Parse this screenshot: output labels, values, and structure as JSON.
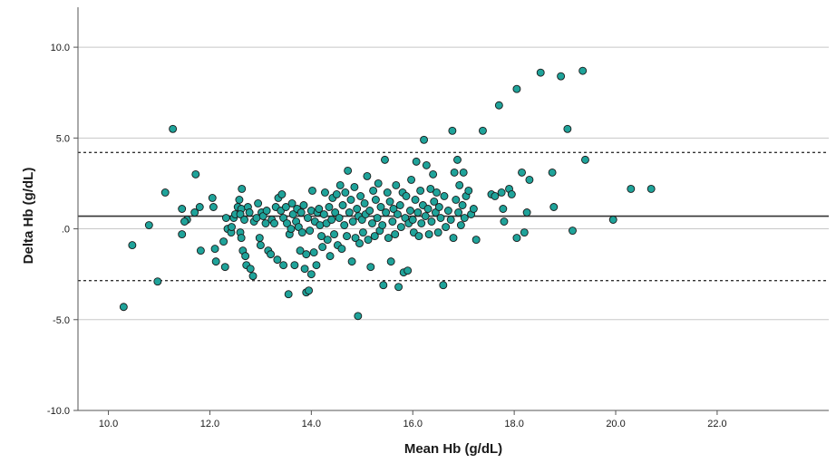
{
  "chart_data": {
    "type": "scatter",
    "xlabel": "Mean Hb (g/dL)",
    "ylabel": "Delta Hb (g/dL)",
    "xlim": [
      9.4,
      24.2
    ],
    "ylim": [
      -10.0,
      12.2
    ],
    "x_ticks": [
      "10.0",
      "12.0",
      "14.0",
      "16.0",
      "18.0",
      "20.0",
      "22.0"
    ],
    "x_tick_values": [
      10,
      12,
      14,
      16,
      18,
      20,
      22
    ],
    "y_ticks": [
      "10.0",
      "5.0",
      ".0",
      "-5.0",
      "-10.0"
    ],
    "y_tick_values": [
      10,
      5,
      0,
      -5,
      -10
    ],
    "grid": "horizontal",
    "reference_lines": [
      {
        "value": 0.7,
        "style": "solid"
      },
      {
        "value": 4.2,
        "style": "dotted"
      },
      {
        "value": -2.85,
        "style": "dotted"
      }
    ],
    "marker_color": "#1fa39a",
    "marker_edge_color": "#1a1a1a",
    "points": [
      [
        10.3,
        -4.3
      ],
      [
        10.47,
        -0.9
      ],
      [
        10.8,
        0.2
      ],
      [
        10.97,
        -2.9
      ],
      [
        11.12,
        2.0
      ],
      [
        11.27,
        5.5
      ],
      [
        11.45,
        1.1
      ],
      [
        11.45,
        -0.3
      ],
      [
        11.55,
        0.5
      ],
      [
        11.5,
        0.4
      ],
      [
        11.7,
        0.9
      ],
      [
        11.72,
        3.0
      ],
      [
        11.8,
        1.2
      ],
      [
        11.82,
        -1.2
      ],
      [
        12.05,
        1.7
      ],
      [
        12.07,
        1.2
      ],
      [
        12.1,
        -1.1
      ],
      [
        12.12,
        -1.8
      ],
      [
        12.27,
        -0.7
      ],
      [
        12.3,
        -2.1
      ],
      [
        12.32,
        0.6
      ],
      [
        12.35,
        0.0
      ],
      [
        12.42,
        -0.2
      ],
      [
        12.43,
        0.1
      ],
      [
        12.47,
        0.6
      ],
      [
        12.5,
        0.8
      ],
      [
        12.55,
        1.2
      ],
      [
        12.58,
        1.6
      ],
      [
        12.62,
        1.1
      ],
      [
        12.6,
        0.8
      ],
      [
        12.6,
        -0.2
      ],
      [
        12.62,
        -0.5
      ],
      [
        12.65,
        -1.2
      ],
      [
        12.63,
        2.2
      ],
      [
        12.68,
        0.5
      ],
      [
        12.7,
        -1.5
      ],
      [
        12.72,
        -2.0
      ],
      [
        12.75,
        1.2
      ],
      [
        12.78,
        0.9
      ],
      [
        12.8,
        -2.2
      ],
      [
        12.85,
        -2.6
      ],
      [
        12.87,
        0.4
      ],
      [
        12.92,
        0.6
      ],
      [
        12.95,
        1.4
      ],
      [
        12.98,
        -0.5
      ],
      [
        13.0,
        -0.9
      ],
      [
        13.02,
        0.9
      ],
      [
        13.05,
        0.7
      ],
      [
        13.1,
        0.3
      ],
      [
        13.12,
        1.0
      ],
      [
        13.15,
        -1.2
      ],
      [
        13.2,
        -1.4
      ],
      [
        13.22,
        0.5
      ],
      [
        13.27,
        0.3
      ],
      [
        13.3,
        1.2
      ],
      [
        13.33,
        -1.7
      ],
      [
        13.35,
        1.7
      ],
      [
        13.4,
        1.0
      ],
      [
        13.42,
        1.9
      ],
      [
        13.45,
        0.6
      ],
      [
        13.45,
        -2.0
      ],
      [
        13.5,
        1.2
      ],
      [
        13.52,
        0.3
      ],
      [
        13.55,
        -3.6
      ],
      [
        13.57,
        -0.3
      ],
      [
        13.6,
        0.0
      ],
      [
        13.62,
        1.4
      ],
      [
        13.64,
        0.8
      ],
      [
        13.67,
        -2.0
      ],
      [
        13.7,
        0.4
      ],
      [
        13.72,
        1.1
      ],
      [
        13.75,
        0.1
      ],
      [
        13.78,
        -1.2
      ],
      [
        13.8,
        0.9
      ],
      [
        13.82,
        -0.2
      ],
      [
        13.85,
        1.3
      ],
      [
        13.87,
        -2.2
      ],
      [
        13.9,
        -1.4
      ],
      [
        13.9,
        -3.5
      ],
      [
        13.93,
        0.6
      ],
      [
        13.95,
        -3.4
      ],
      [
        13.97,
        -0.1
      ],
      [
        14.0,
        1.0
      ],
      [
        14.0,
        -2.5
      ],
      [
        14.02,
        2.1
      ],
      [
        14.05,
        -1.3
      ],
      [
        14.07,
        0.4
      ],
      [
        14.1,
        -2.0
      ],
      [
        14.12,
        0.9
      ],
      [
        14.15,
        1.1
      ],
      [
        14.17,
        0.2
      ],
      [
        14.2,
        -0.4
      ],
      [
        14.22,
        -1.0
      ],
      [
        14.25,
        0.8
      ],
      [
        14.27,
        2.0
      ],
      [
        14.3,
        0.3
      ],
      [
        14.32,
        -0.6
      ],
      [
        14.35,
        1.2
      ],
      [
        14.37,
        -1.5
      ],
      [
        14.4,
        0.5
      ],
      [
        14.42,
        1.7
      ],
      [
        14.45,
        -0.3
      ],
      [
        14.47,
        0.9
      ],
      [
        14.5,
        1.9
      ],
      [
        14.52,
        -0.9
      ],
      [
        14.55,
        0.6
      ],
      [
        14.57,
        2.4
      ],
      [
        14.6,
        -1.1
      ],
      [
        14.62,
        1.3
      ],
      [
        14.65,
        0.2
      ],
      [
        14.67,
        2.0
      ],
      [
        14.7,
        -0.4
      ],
      [
        14.72,
        3.2
      ],
      [
        14.75,
        0.9
      ],
      [
        14.78,
        1.6
      ],
      [
        14.8,
        -1.8
      ],
      [
        14.82,
        0.4
      ],
      [
        14.85,
        2.3
      ],
      [
        14.87,
        -0.5
      ],
      [
        14.9,
        1.1
      ],
      [
        14.92,
        -4.8
      ],
      [
        14.93,
        0.7
      ],
      [
        14.95,
        -0.8
      ],
      [
        14.97,
        1.8
      ],
      [
        15.0,
        0.5
      ],
      [
        15.02,
        -0.2
      ],
      [
        15.05,
        1.4
      ],
      [
        15.07,
        0.8
      ],
      [
        15.1,
        2.9
      ],
      [
        15.12,
        -0.6
      ],
      [
        15.15,
        1.0
      ],
      [
        15.17,
        -2.1
      ],
      [
        15.2,
        0.3
      ],
      [
        15.22,
        2.1
      ],
      [
        15.25,
        -0.4
      ],
      [
        15.27,
        1.6
      ],
      [
        15.3,
        0.6
      ],
      [
        15.32,
        2.5
      ],
      [
        15.35,
        -0.1
      ],
      [
        15.37,
        1.2
      ],
      [
        15.4,
        0.2
      ],
      [
        15.42,
        -3.1
      ],
      [
        15.45,
        3.8
      ],
      [
        15.47,
        0.9
      ],
      [
        15.5,
        2.0
      ],
      [
        15.52,
        -0.5
      ],
      [
        15.55,
        1.5
      ],
      [
        15.57,
        -1.8
      ],
      [
        15.6,
        0.4
      ],
      [
        15.62,
        1.1
      ],
      [
        15.65,
        -0.3
      ],
      [
        15.67,
        2.4
      ],
      [
        15.7,
        0.8
      ],
      [
        15.72,
        -3.2
      ],
      [
        15.75,
        1.3
      ],
      [
        15.77,
        0.1
      ],
      [
        15.8,
        2.0
      ],
      [
        15.82,
        -2.4
      ],
      [
        15.85,
        0.6
      ],
      [
        15.87,
        1.8
      ],
      [
        15.9,
        -2.3
      ],
      [
        15.92,
        0.3
      ],
      [
        15.95,
        1.0
      ],
      [
        15.97,
        2.7
      ],
      [
        16.0,
        0.5
      ],
      [
        16.02,
        -0.2
      ],
      [
        16.05,
        1.6
      ],
      [
        16.07,
        3.7
      ],
      [
        16.1,
        0.9
      ],
      [
        16.12,
        -0.4
      ],
      [
        16.15,
        2.1
      ],
      [
        16.17,
        0.3
      ],
      [
        16.2,
        1.3
      ],
      [
        16.22,
        4.9
      ],
      [
        16.25,
        0.7
      ],
      [
        16.27,
        3.5
      ],
      [
        16.3,
        1.1
      ],
      [
        16.32,
        -0.3
      ],
      [
        16.35,
        2.2
      ],
      [
        16.37,
        0.4
      ],
      [
        16.4,
        3.0
      ],
      [
        16.42,
        1.5
      ],
      [
        16.45,
        0.9
      ],
      [
        16.47,
        2.0
      ],
      [
        16.5,
        -0.2
      ],
      [
        16.52,
        1.2
      ],
      [
        16.55,
        0.6
      ],
      [
        16.6,
        -3.1
      ],
      [
        16.62,
        1.8
      ],
      [
        16.65,
        0.1
      ],
      [
        16.7,
        1.0
      ],
      [
        16.75,
        0.5
      ],
      [
        16.78,
        5.4
      ],
      [
        16.8,
        -0.5
      ],
      [
        16.82,
        3.1
      ],
      [
        16.85,
        1.6
      ],
      [
        16.88,
        3.8
      ],
      [
        16.9,
        0.9
      ],
      [
        16.92,
        2.4
      ],
      [
        16.95,
        0.2
      ],
      [
        16.98,
        1.3
      ],
      [
        17.0,
        3.1
      ],
      [
        17.02,
        0.6
      ],
      [
        17.05,
        1.8
      ],
      [
        17.1,
        2.1
      ],
      [
        17.15,
        0.8
      ],
      [
        17.2,
        1.1
      ],
      [
        17.25,
        -0.6
      ],
      [
        17.38,
        5.4
      ],
      [
        17.55,
        1.9
      ],
      [
        17.62,
        1.8
      ],
      [
        17.7,
        6.8
      ],
      [
        17.75,
        2.0
      ],
      [
        17.78,
        1.1
      ],
      [
        17.8,
        0.4
      ],
      [
        17.9,
        2.2
      ],
      [
        17.95,
        1.9
      ],
      [
        18.05,
        -0.5
      ],
      [
        18.05,
        7.7
      ],
      [
        18.15,
        3.1
      ],
      [
        18.2,
        -0.2
      ],
      [
        18.25,
        0.9
      ],
      [
        18.3,
        2.7
      ],
      [
        18.52,
        8.6
      ],
      [
        18.75,
        3.1
      ],
      [
        18.78,
        1.2
      ],
      [
        18.92,
        8.4
      ],
      [
        19.05,
        5.5
      ],
      [
        19.15,
        -0.1
      ],
      [
        19.35,
        8.7
      ],
      [
        19.4,
        3.8
      ],
      [
        19.95,
        0.5
      ],
      [
        20.3,
        2.2
      ],
      [
        20.7,
        2.2
      ]
    ]
  }
}
